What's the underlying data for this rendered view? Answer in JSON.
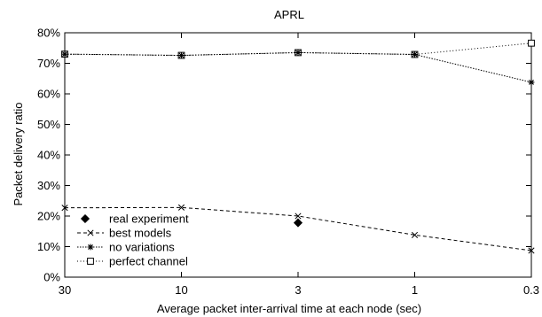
{
  "chart_data": {
    "type": "line",
    "title": "APRL",
    "xlabel": "Average packet inter-arrival time at each node (sec)",
    "ylabel": "Packet delivery ratio",
    "categories": [
      "30",
      "10",
      "3",
      "1",
      "0.3"
    ],
    "yticks": [
      "0%",
      "10%",
      "20%",
      "30%",
      "40%",
      "50%",
      "60%",
      "70%",
      "80%"
    ],
    "ylim": [
      0,
      80
    ],
    "grid": false,
    "legend_position": "bottom-left",
    "series": [
      {
        "name": "real experiment",
        "marker": "diamond-filled",
        "line": "none",
        "points": [
          {
            "x": "3",
            "y": 17.8
          }
        ]
      },
      {
        "name": "best models",
        "marker": "x",
        "line": "dashed",
        "points": [
          {
            "x": "30",
            "y": 22.7
          },
          {
            "x": "10",
            "y": 22.8
          },
          {
            "x": "3",
            "y": 20.0
          },
          {
            "x": "1",
            "y": 13.8
          },
          {
            "x": "0.3",
            "y": 8.7
          }
        ]
      },
      {
        "name": "no variations",
        "marker": "asterisk",
        "line": "dense-dotted",
        "points": [
          {
            "x": "30",
            "y": 73.0
          },
          {
            "x": "10",
            "y": 72.6
          },
          {
            "x": "3",
            "y": 73.5
          },
          {
            "x": "1",
            "y": 72.9
          },
          {
            "x": "0.3",
            "y": 63.8
          }
        ]
      },
      {
        "name": "perfect channel",
        "marker": "square-open",
        "line": "dotted",
        "points": [
          {
            "x": "30",
            "y": 73.0
          },
          {
            "x": "10",
            "y": 72.6
          },
          {
            "x": "3",
            "y": 73.5
          },
          {
            "x": "1",
            "y": 72.9
          },
          {
            "x": "0.3",
            "y": 76.6
          }
        ]
      }
    ]
  }
}
